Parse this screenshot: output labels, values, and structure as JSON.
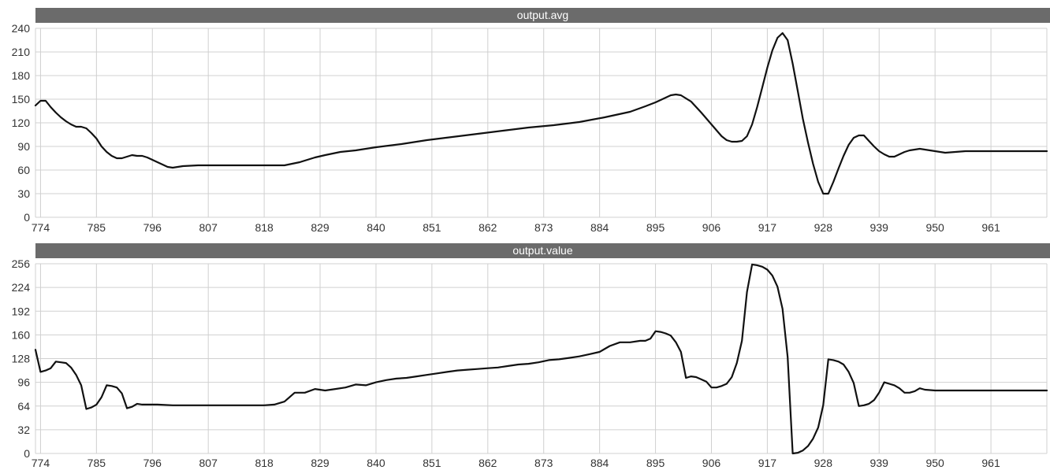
{
  "colors": {
    "title_bar": "#6b6b6b",
    "title_text": "#ffffff",
    "grid": "#d0d0d0",
    "line": "#111111",
    "tick_text": "#333333"
  },
  "chart_data": [
    {
      "type": "line",
      "title": "output.avg",
      "xlabel": "",
      "ylabel": "",
      "grid": true,
      "xlim": [
        773,
        972
      ],
      "ylim": [
        0,
        240
      ],
      "xticks": [
        774,
        785,
        796,
        807,
        818,
        829,
        840,
        851,
        862,
        873,
        884,
        895,
        906,
        917,
        928,
        939,
        950,
        961
      ],
      "yticks": [
        0,
        30,
        60,
        90,
        120,
        150,
        180,
        210,
        240
      ],
      "series": [
        {
          "x": [
            773,
            774,
            775,
            776,
            777,
            778,
            779,
            780,
            781,
            782,
            783,
            784,
            785,
            786,
            787,
            788,
            789,
            790,
            791,
            792,
            793,
            794,
            795,
            796,
            797,
            798,
            799,
            800,
            802,
            805,
            810,
            815,
            820,
            822,
            825,
            828,
            830,
            833,
            836,
            840,
            845,
            850,
            855,
            860,
            865,
            870,
            875,
            880,
            885,
            890,
            893,
            895,
            897,
            898,
            899,
            900,
            902,
            904,
            906,
            908,
            909,
            910,
            911,
            912,
            913,
            914,
            915,
            916,
            917,
            918,
            919,
            920,
            921,
            922,
            923,
            924,
            925,
            926,
            927,
            928,
            929,
            930,
            931,
            932,
            933,
            934,
            935,
            936,
            937,
            938,
            939,
            940,
            941,
            942,
            943,
            944,
            945,
            946,
            947,
            948,
            950,
            952,
            954,
            956,
            958,
            960,
            965,
            970,
            972
          ],
          "values": [
            142,
            148,
            148,
            140,
            133,
            127,
            122,
            118,
            115,
            115,
            113,
            107,
            100,
            90,
            83,
            78,
            75,
            75,
            77,
            79,
            78,
            78,
            76,
            73,
            70,
            67,
            64,
            63,
            65,
            66,
            66,
            66,
            66,
            66,
            70,
            76,
            79,
            83,
            85,
            89,
            93,
            98,
            102,
            106,
            110,
            114,
            117,
            121,
            127,
            134,
            141,
            146,
            152,
            155,
            156,
            155,
            147,
            133,
            118,
            103,
            98,
            96,
            96,
            97,
            103,
            118,
            140,
            165,
            190,
            212,
            228,
            234,
            225,
            195,
            160,
            125,
            95,
            68,
            45,
            30,
            30,
            45,
            62,
            78,
            92,
            101,
            104,
            104,
            97,
            90,
            84,
            80,
            77,
            77,
            80,
            83,
            85,
            86,
            87,
            86,
            84,
            82,
            83,
            84,
            84,
            84,
            84,
            84,
            84
          ]
        }
      ]
    },
    {
      "type": "line",
      "title": "output.value",
      "xlabel": "",
      "ylabel": "",
      "grid": true,
      "xlim": [
        773,
        972
      ],
      "ylim": [
        0,
        256
      ],
      "xticks": [
        774,
        785,
        796,
        807,
        818,
        829,
        840,
        851,
        862,
        873,
        884,
        895,
        906,
        917,
        928,
        939,
        950,
        961
      ],
      "yticks": [
        0,
        32,
        64,
        96,
        128,
        160,
        192,
        224,
        256
      ],
      "series": [
        {
          "x": [
            773,
            774,
            775,
            776,
            777,
            778,
            779,
            780,
            781,
            782,
            783,
            784,
            785,
            786,
            787,
            788,
            789,
            790,
            791,
            792,
            793,
            794,
            795,
            796,
            797,
            800,
            803,
            806,
            809,
            812,
            815,
            818,
            820,
            822,
            824,
            826,
            828,
            830,
            832,
            834,
            836,
            838,
            840,
            842,
            844,
            846,
            848,
            850,
            852,
            854,
            856,
            858,
            860,
            862,
            864,
            866,
            868,
            870,
            872,
            874,
            876,
            878,
            880,
            882,
            884,
            886,
            888,
            890,
            892,
            893,
            894,
            895,
            896,
            897,
            898,
            899,
            900,
            901,
            902,
            903,
            904,
            905,
            906,
            907,
            908,
            909,
            910,
            911,
            912,
            913,
            914,
            915,
            916,
            917,
            918,
            919,
            920,
            921,
            922,
            923,
            924,
            925,
            926,
            927,
            928,
            929,
            930,
            931,
            932,
            933,
            934,
            935,
            936,
            937,
            938,
            939,
            940,
            941,
            942,
            943,
            944,
            945,
            946,
            947,
            948,
            950,
            955,
            960,
            965,
            970,
            972
          ],
          "values": [
            140,
            110,
            112,
            115,
            124,
            123,
            122,
            116,
            106,
            92,
            60,
            62,
            66,
            76,
            92,
            91,
            89,
            81,
            61,
            63,
            67,
            66,
            66,
            66,
            66,
            65,
            65,
            65,
            65,
            65,
            65,
            65,
            66,
            70,
            82,
            82,
            87,
            85,
            87,
            89,
            93,
            92,
            96,
            99,
            101,
            102,
            104,
            106,
            108,
            110,
            112,
            113,
            114,
            115,
            116,
            118,
            120,
            121,
            123,
            126,
            127,
            129,
            131,
            134,
            137,
            145,
            150,
            150,
            152,
            152,
            155,
            165,
            164,
            162,
            159,
            150,
            137,
            102,
            104,
            103,
            100,
            97,
            89,
            89,
            91,
            94,
            103,
            122,
            152,
            218,
            255,
            254,
            252,
            248,
            240,
            225,
            195,
            130,
            0,
            1,
            4,
            10,
            20,
            35,
            65,
            127,
            126,
            124,
            120,
            110,
            95,
            64,
            65,
            67,
            72,
            82,
            96,
            94,
            92,
            88,
            82,
            82,
            84,
            88,
            86,
            85,
            85,
            85,
            85,
            85,
            85
          ]
        }
      ]
    }
  ]
}
